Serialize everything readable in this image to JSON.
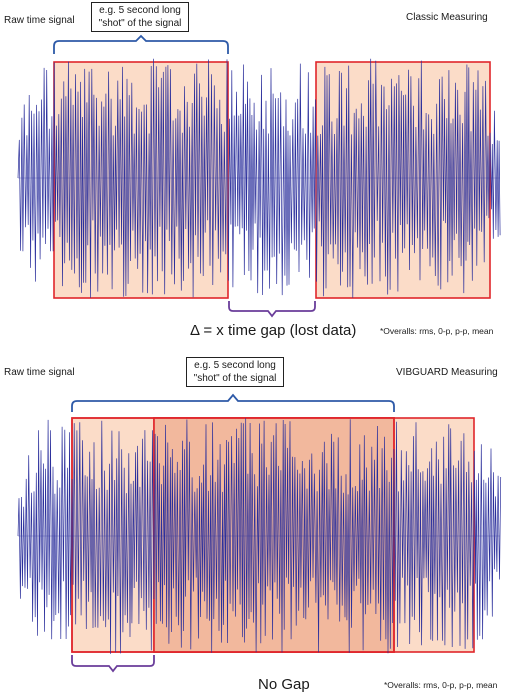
{
  "top": {
    "left_label": "Raw time signal",
    "right_label": "Classic Measuring",
    "callout_line1": "e.g. 5 second long",
    "callout_line2": "\"shot\" of the signal",
    "gap_label": "Δ = x time gap (lost data)",
    "overall_note": "*Overalls: rms, 0-p, p-p, mean"
  },
  "bottom": {
    "left_label": "Raw time signal",
    "right_label": "VIBGUARD Measuring",
    "callout_line1": "e.g. 5 second long",
    "callout_line2": "\"shot\" of the signal",
    "gap_label": "No Gap",
    "overall_note": "*Overalls: rms, 0-p, p-p, mean"
  },
  "colors": {
    "signal": "#2b2f9c",
    "window_stroke": "#e0262b",
    "window_fill": "#fbdcc8",
    "overlap_fill": "#f2b89d",
    "bracket_blue": "#2e5aa8",
    "bracket_purple": "#6a3d9a"
  }
}
